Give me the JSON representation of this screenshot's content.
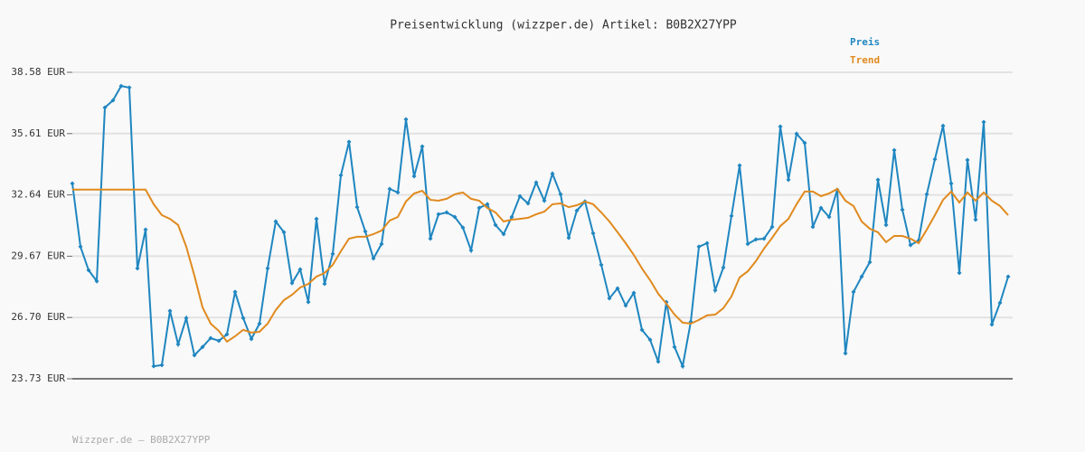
{
  "chart_data": {
    "type": "line",
    "title": "Preisentwicklung (wizzper.de) Artikel: B0B2X27YPP",
    "footer": "Wizzper.de – B0B2X27YPP",
    "ylim": [
      23.73,
      38.58
    ],
    "yticks": [
      {
        "value": 23.73,
        "label": "23.73 EUR"
      },
      {
        "value": 26.7,
        "label": "26.70 EUR"
      },
      {
        "value": 29.67,
        "label": "29.67 EUR"
      },
      {
        "value": 32.64,
        "label": "32.64 EUR"
      },
      {
        "value": 35.61,
        "label": "35.61 EUR"
      },
      {
        "value": 38.58,
        "label": "38.58 EUR"
      }
    ],
    "grid": true,
    "series": [
      {
        "name": "Preis",
        "color": "#1f86c0",
        "markers": true,
        "values": [
          33.19,
          30.13,
          28.99,
          28.46,
          36.87,
          37.22,
          37.92,
          37.84,
          29.08,
          30.96,
          24.34,
          24.39,
          27.02,
          25.4,
          26.67,
          24.87,
          25.27,
          25.7,
          25.57,
          25.88,
          27.94,
          26.67,
          25.66,
          26.4,
          29.08,
          31.35,
          30.83,
          28.37,
          29.03,
          27.45,
          31.48,
          28.33,
          29.78,
          33.59,
          35.21,
          32.05,
          30.87,
          29.56,
          30.26,
          32.93,
          32.76,
          36.3,
          33.54,
          34.99,
          30.52,
          31.7,
          31.79,
          31.57,
          31.05,
          29.95,
          32.01,
          32.19,
          31.18,
          30.74,
          31.57,
          32.58,
          32.23,
          33.24,
          32.36,
          33.67,
          32.67,
          30.56,
          31.88,
          32.32,
          30.78,
          29.25,
          27.63,
          28.11,
          27.28,
          27.89,
          26.1,
          25.62,
          24.56,
          27.45,
          25.27,
          24.34,
          26.49,
          30.13,
          30.3,
          28.02,
          29.12,
          31.62,
          34.07,
          30.26,
          30.48,
          30.52,
          31.09,
          35.95,
          33.37,
          35.6,
          35.16,
          31.09,
          32.01,
          31.57,
          32.89,
          24.96,
          27.94,
          28.68,
          29.38,
          33.37,
          31.18,
          34.81,
          31.92,
          30.21,
          30.43,
          32.67,
          34.37,
          35.99,
          33.19,
          28.86,
          34.33,
          31.44,
          36.17,
          26.36,
          27.41,
          28.68
        ]
      },
      {
        "name": "Trend",
        "color": "#e08a1e",
        "markers": false,
        "values": [
          32.9,
          32.9,
          32.9,
          32.9,
          32.9,
          32.9,
          32.9,
          32.9,
          32.9,
          32.9,
          32.19,
          31.66,
          31.48,
          31.18,
          30.13,
          28.73,
          27.19,
          26.4,
          26.05,
          25.53,
          25.79,
          26.1,
          25.97,
          26.01,
          26.4,
          27.06,
          27.54,
          27.8,
          28.15,
          28.33,
          28.68,
          28.86,
          29.25,
          29.91,
          30.52,
          30.61,
          30.61,
          30.74,
          30.91,
          31.4,
          31.57,
          32.32,
          32.71,
          32.84,
          32.4,
          32.36,
          32.45,
          32.67,
          32.76,
          32.45,
          32.36,
          32.01,
          31.79,
          31.35,
          31.44,
          31.48,
          31.53,
          31.7,
          31.83,
          32.19,
          32.23,
          32.05,
          32.14,
          32.32,
          32.19,
          31.79,
          31.35,
          30.83,
          30.3,
          29.73,
          29.08,
          28.51,
          27.85,
          27.37,
          26.84,
          26.45,
          26.4,
          26.58,
          26.8,
          26.84,
          27.15,
          27.72,
          28.64,
          28.94,
          29.43,
          30.04,
          30.56,
          31.13,
          31.48,
          32.19,
          32.8,
          32.8,
          32.58,
          32.71,
          32.93,
          32.36,
          32.1,
          31.35,
          31.0,
          30.83,
          30.35,
          30.65,
          30.65,
          30.52,
          30.3,
          30.96,
          31.66,
          32.4,
          32.8,
          32.27,
          32.76,
          32.36,
          32.76,
          32.36,
          32.1,
          31.66
        ]
      }
    ]
  }
}
